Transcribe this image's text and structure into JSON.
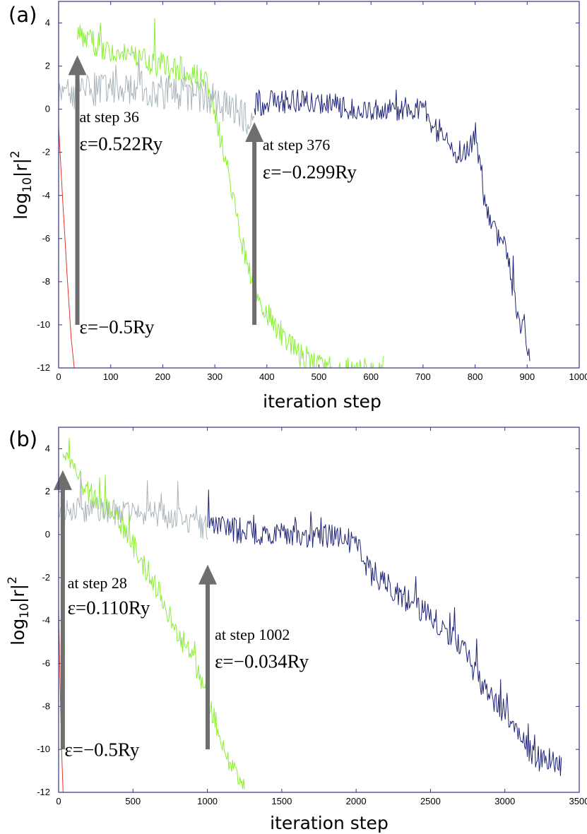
{
  "chart_data": [
    {
      "type": "line",
      "panel_label": "(a)",
      "xlabel": "iteration step",
      "ylabel": "log10|r|^2",
      "xlim": [
        0,
        1000
      ],
      "ylim": [
        -12,
        5
      ],
      "xticks": [
        0,
        100,
        200,
        300,
        400,
        500,
        600,
        700,
        800,
        900,
        1000
      ],
      "yticks": [
        4,
        2,
        0,
        -2,
        -4,
        -6,
        -8,
        -10,
        -12
      ],
      "grid": false,
      "series": [
        {
          "name": "eps=-0.5Ry",
          "color": "#e8322c",
          "noise": 0,
          "x": [
            0,
            8,
            16,
            24,
            30
          ],
          "y": [
            -0.8,
            -4.3,
            -7.6,
            -10.6,
            -12
          ]
        },
        {
          "name": "eps=0.522Ry",
          "color": "#88f030",
          "noise": 0.6,
          "x": [
            36,
            60,
            100,
            150,
            200,
            250,
            280,
            300,
            330,
            360,
            380,
            400,
            420,
            440,
            460,
            480,
            500,
            520,
            545,
            570,
            600,
            625
          ],
          "y": [
            3.5,
            3.2,
            2.7,
            2.3,
            2.0,
            1.8,
            1.3,
            0.0,
            -3.5,
            -7.0,
            -8.8,
            -9.5,
            -10.2,
            -10.8,
            -11.3,
            -11.6,
            -11.9,
            -12.0,
            -12.1,
            -12.1,
            -12.1,
            -12.0
          ]
        },
        {
          "name": "gray-a",
          "color": "#a9b5bb",
          "noise": 0.8,
          "x": [
            0,
            50,
            100,
            150,
            200,
            250,
            300,
            340,
            376
          ],
          "y": [
            0.5,
            0.9,
            1.0,
            1.0,
            0.8,
            0.7,
            0.4,
            0.0,
            -0.8
          ]
        },
        {
          "name": "eps=-0.299Ry",
          "color": "#1f2477",
          "noise": 0.55,
          "x": [
            376,
            400,
            450,
            500,
            550,
            600,
            650,
            700,
            730,
            760,
            780,
            800,
            820,
            840,
            860,
            880,
            905
          ],
          "y": [
            0.2,
            0.3,
            0.4,
            0.3,
            0.1,
            -0.1,
            0.0,
            0.1,
            -1.2,
            -2.0,
            -2.0,
            -1.4,
            -4.5,
            -5.8,
            -6.6,
            -9.3,
            -11.2
          ]
        }
      ],
      "annotations": {
        "a1_step": "at step 36",
        "a1_eps": "ε=0.522Ry",
        "a2_step": "at step 376",
        "a2_eps": "ε=−0.299Ry",
        "a3_eps": "ε=−0.5Ry"
      },
      "arrows": [
        {
          "x": 36,
          "y_from": -10,
          "y_to": 2.5
        },
        {
          "x": 376,
          "y_from": -10,
          "y_to": -0.6
        }
      ],
      "text_anchors": [
        {
          "key": "a1_step",
          "x": 40,
          "y": -0.6
        },
        {
          "key": "a1_eps",
          "x": 40,
          "y": -1.9
        },
        {
          "key": "a2_step",
          "x": 392,
          "y": -1.9
        },
        {
          "key": "a2_eps",
          "x": 392,
          "y": -3.2
        },
        {
          "key": "a3_eps",
          "x": 40,
          "y": -10.4
        }
      ]
    },
    {
      "type": "line",
      "panel_label": "(b)",
      "xlabel": "iteration step",
      "ylabel": "log10|r|^2",
      "xlim": [
        0,
        3500
      ],
      "ylim": [
        -12,
        5
      ],
      "xticks": [
        0,
        500,
        1000,
        1500,
        2000,
        2500,
        3000,
        3500
      ],
      "yticks": [
        4,
        2,
        0,
        -2,
        -4,
        -6,
        -8,
        -10,
        -12
      ],
      "grid": false,
      "series": [
        {
          "name": "eps=-0.5Ry",
          "color": "#e8322c",
          "noise": 0,
          "x": [
            0,
            10,
            20,
            30
          ],
          "y": [
            -3.5,
            -7.0,
            -10.0,
            -12
          ]
        },
        {
          "name": "eps=0.110Ry",
          "color": "#88f030",
          "noise": 0.55,
          "x": [
            28,
            100,
            200,
            300,
            400,
            500,
            600,
            700,
            800,
            900,
            1000,
            1100,
            1150,
            1200,
            1250
          ],
          "y": [
            4.0,
            3.0,
            2.0,
            1.3,
            0.8,
            -0.5,
            -1.8,
            -3.0,
            -4.5,
            -5.8,
            -7.5,
            -9.8,
            -10.5,
            -11.3,
            -12.0
          ]
        },
        {
          "name": "gray-b",
          "color": "#a9b5bb",
          "noise": 0.6,
          "x": [
            0,
            200,
            400,
            600,
            800,
            1000
          ],
          "y": [
            1.0,
            1.2,
            1.0,
            1.0,
            0.8,
            0.3
          ]
        },
        {
          "name": "eps=-0.034Ry",
          "color": "#1f2477",
          "noise": 0.6,
          "x": [
            1002,
            1200,
            1500,
            1800,
            2000,
            2100,
            2300,
            2500,
            2700,
            2800,
            3000,
            3100,
            3200,
            3300,
            3380
          ],
          "y": [
            0.5,
            0.2,
            0.0,
            0.0,
            -0.4,
            -1.8,
            -2.8,
            -3.8,
            -5.0,
            -6.5,
            -8.3,
            -9.4,
            -10.5,
            -10.3,
            -10.8
          ]
        }
      ],
      "annotations": {
        "b1_step": "at step 28",
        "b1_eps": "ε=0.110Ry",
        "b2_step": "at step 1002",
        "b2_eps": "ε=−0.034Ry",
        "b3_eps": "ε=−0.5Ry"
      },
      "arrows": [
        {
          "x": 28,
          "y_from": -10,
          "y_to": 3.0
        },
        {
          "x": 1002,
          "y_from": -10,
          "y_to": -1.4
        }
      ],
      "text_anchors": [
        {
          "key": "b1_step",
          "x": 60,
          "y": -2.5
        },
        {
          "key": "b1_eps",
          "x": 60,
          "y": -3.7
        },
        {
          "key": "b2_step",
          "x": 1050,
          "y": -4.9
        },
        {
          "key": "b2_eps",
          "x": 1050,
          "y": -6.2
        },
        {
          "key": "b3_eps",
          "x": 40,
          "y": -10.3
        }
      ]
    }
  ]
}
